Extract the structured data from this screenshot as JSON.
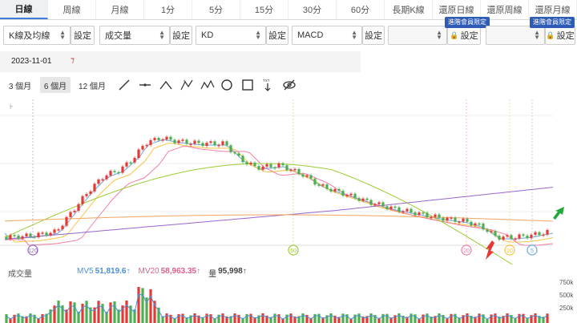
{
  "tabs": [
    "日線",
    "周線",
    "月線",
    "1分",
    "5分",
    "15分",
    "30分",
    "60分",
    "長期K線",
    "還原日線",
    "還原周線",
    "還原月線"
  ],
  "indicators": [
    {
      "value": "K線及均線",
      "setting": "設定"
    },
    {
      "value": "成交量",
      "setting": "設定"
    },
    {
      "value": "KD",
      "setting": "設定"
    },
    {
      "value": "MACD",
      "setting": "設定"
    },
    {
      "value": "",
      "setting": "設定",
      "locked": true
    },
    {
      "value": "",
      "setting": "設定",
      "locked": true
    }
  ],
  "vip_badge": "進階會員限定",
  "date": "2023-11-01",
  "ranges": [
    "3 個月",
    "6 個月",
    "12 個月"
  ],
  "tools": [
    "line-tool-icon",
    "horizontal-line-icon",
    "polyline-icon",
    "abc-pattern-icon",
    "abcd-pattern-icon",
    "circle-icon",
    "rectangle-icon",
    "text-annotation-icon",
    "hide-drawings-icon"
  ],
  "main_chart": {
    "ma_markers": [
      "120",
      "60",
      "20",
      "10",
      "5"
    ]
  },
  "volume": {
    "title": "成交量",
    "mv5_label": "MV5",
    "mv5_value": "51,819.6↑",
    "mv20_label": "MV20",
    "mv20_value": "58,963.35↑",
    "vol_label": "量",
    "vol_value": "95,998↑",
    "y_ticks": [
      "750k",
      "500k",
      "250k"
    ]
  },
  "colors": {
    "up": "#e53935",
    "down": "#4caf50",
    "ma5": "#6fa8dc",
    "ma10": "#f6c343",
    "ma20": "#ef7fa5",
    "ma60": "#9acd32",
    "ma120": "#9966cc",
    "ma240": "#f4a460"
  }
}
